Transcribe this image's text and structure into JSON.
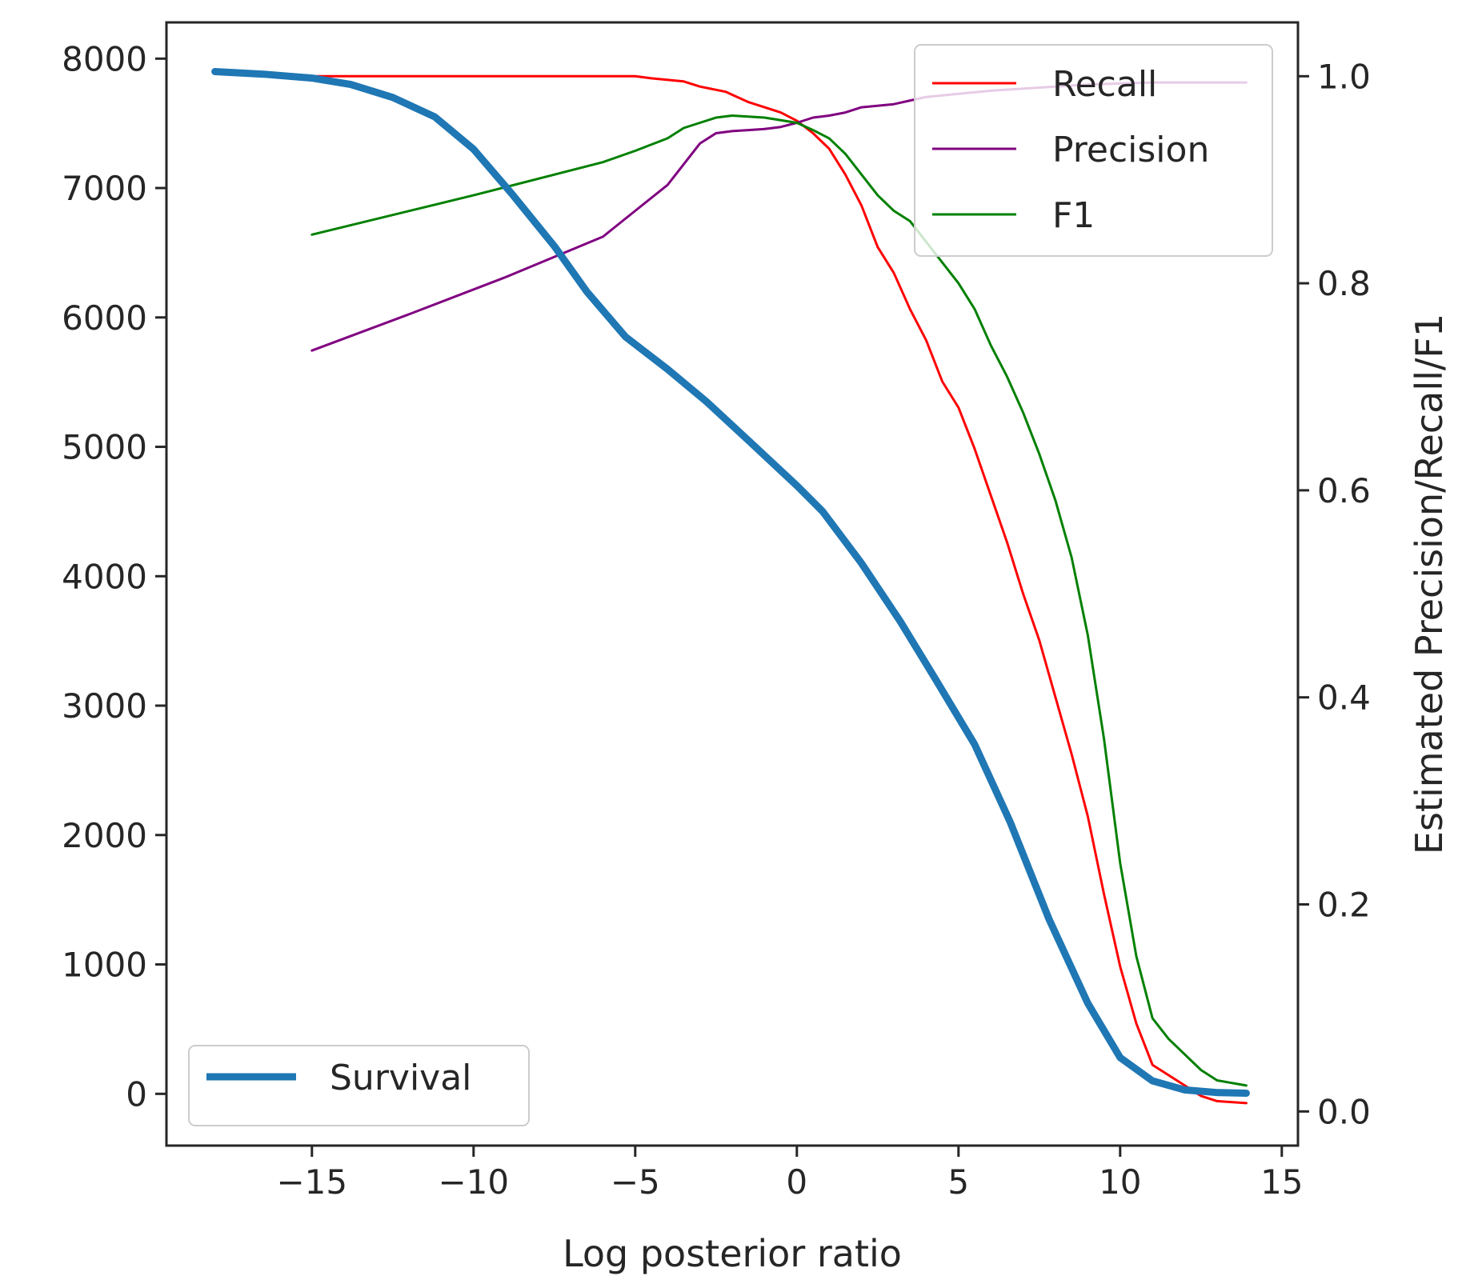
{
  "chart_data": {
    "type": "line",
    "xlabel": "Log posterior ratio",
    "ylabel": "",
    "y2label": "Estimated Precision/Recall/F1",
    "xlim": [
      -19.5,
      15.5
    ],
    "ylim": [
      -400,
      8280
    ],
    "y2lim": [
      -0.033,
      1.052
    ],
    "xticks": [
      -15,
      -10,
      -5,
      0,
      5,
      10,
      15
    ],
    "xtick_labels": [
      "−15",
      "−10",
      "−5",
      "0",
      "5",
      "10",
      "15"
    ],
    "yticks": [
      0,
      1000,
      2000,
      3000,
      4000,
      5000,
      6000,
      7000,
      8000
    ],
    "ytick_labels": [
      "0",
      "1000",
      "2000",
      "3000",
      "4000",
      "5000",
      "6000",
      "7000",
      "8000"
    ],
    "y2ticks": [
      0.0,
      0.2,
      0.4,
      0.6,
      0.8,
      1.0
    ],
    "y2tick_labels": [
      "0.0",
      "0.2",
      "0.4",
      "0.6",
      "0.8",
      "1.0"
    ],
    "grid": false,
    "legend_right": {
      "placement": "upper-right",
      "entries": [
        "Recall",
        "Precision",
        "F1"
      ]
    },
    "legend_left": {
      "placement": "lower-left",
      "entries": [
        "Survival"
      ]
    },
    "series": [
      {
        "name": "Survival",
        "axis": "left",
        "color": "#1f77b4",
        "x": [
          -18.0,
          -16.5,
          -15.0,
          -13.8,
          -12.5,
          -11.2,
          -10.0,
          -8.8,
          -7.5,
          -6.5,
          -5.3,
          -4.0,
          -2.8,
          -1.5,
          0.0,
          0.8,
          2.0,
          3.2,
          4.3,
          5.5,
          6.6,
          7.8,
          9.0,
          10.0,
          11.0,
          12.0,
          13.0,
          13.9
        ],
        "y": [
          7900,
          7880,
          7850,
          7800,
          7700,
          7550,
          7300,
          6950,
          6550,
          6200,
          5850,
          5600,
          5350,
          5050,
          4700,
          4500,
          4100,
          3650,
          3200,
          2700,
          2100,
          1350,
          700,
          280,
          100,
          30,
          10,
          5
        ]
      },
      {
        "name": "Recall",
        "axis": "right",
        "color": "#ff0000",
        "x": [
          -15.0,
          -10.0,
          -5.0,
          -4.5,
          -3.5,
          -3.0,
          -2.2,
          -1.5,
          -0.5,
          0.0,
          0.5,
          1.0,
          1.5,
          2.0,
          2.5,
          3.0,
          3.5,
          4.0,
          4.5,
          5.0,
          5.5,
          6.0,
          6.5,
          7.0,
          7.5,
          8.0,
          8.5,
          9.0,
          9.5,
          10.0,
          10.5,
          11.0,
          11.5,
          12.0,
          12.5,
          13.0,
          13.9
        ],
        "y": [
          1.0,
          1.0,
          1.0,
          0.998,
          0.995,
          0.99,
          0.985,
          0.975,
          0.965,
          0.957,
          0.945,
          0.93,
          0.905,
          0.875,
          0.835,
          0.81,
          0.775,
          0.745,
          0.705,
          0.68,
          0.64,
          0.595,
          0.55,
          0.5,
          0.455,
          0.4,
          0.345,
          0.285,
          0.21,
          0.14,
          0.085,
          0.045,
          0.035,
          0.025,
          0.015,
          0.01,
          0.008
        ]
      },
      {
        "name": "Precision",
        "axis": "right",
        "color": "#800080",
        "x": [
          -15.0,
          -12.0,
          -9.0,
          -6.0,
          -5.0,
          -4.0,
          -3.5,
          -3.0,
          -2.5,
          -2.0,
          -1.5,
          -1.0,
          -0.5,
          0.0,
          0.5,
          1.0,
          1.5,
          2.0,
          3.0,
          4.0,
          5.0,
          6.0,
          7.0,
          8.0,
          9.0,
          10.0,
          11.0,
          12.0,
          13.0,
          13.9
        ],
        "y": [
          0.735,
          0.77,
          0.806,
          0.845,
          0.87,
          0.895,
          0.915,
          0.935,
          0.945,
          0.947,
          0.948,
          0.949,
          0.951,
          0.955,
          0.96,
          0.962,
          0.965,
          0.97,
          0.973,
          0.98,
          0.983,
          0.986,
          0.988,
          0.99,
          0.992,
          0.993,
          0.994,
          0.994,
          0.994,
          0.994
        ]
      },
      {
        "name": "F1",
        "axis": "right",
        "color": "#008000",
        "x": [
          -15.0,
          -10.0,
          -6.0,
          -5.0,
          -4.0,
          -3.5,
          -3.0,
          -2.5,
          -2.0,
          -1.0,
          0.0,
          0.5,
          1.0,
          1.5,
          2.0,
          2.5,
          3.0,
          3.5,
          4.0,
          4.5,
          5.0,
          5.5,
          6.0,
          6.5,
          7.0,
          7.5,
          8.0,
          8.5,
          9.0,
          9.5,
          10.0,
          10.5,
          11.0,
          11.5,
          12.0,
          12.5,
          13.0,
          13.9
        ],
        "y": [
          0.847,
          0.885,
          0.917,
          0.928,
          0.94,
          0.95,
          0.955,
          0.96,
          0.962,
          0.96,
          0.955,
          0.948,
          0.94,
          0.925,
          0.905,
          0.885,
          0.87,
          0.86,
          0.84,
          0.82,
          0.8,
          0.775,
          0.74,
          0.71,
          0.675,
          0.635,
          0.59,
          0.535,
          0.46,
          0.36,
          0.24,
          0.15,
          0.09,
          0.07,
          0.055,
          0.04,
          0.03,
          0.025
        ]
      }
    ]
  }
}
